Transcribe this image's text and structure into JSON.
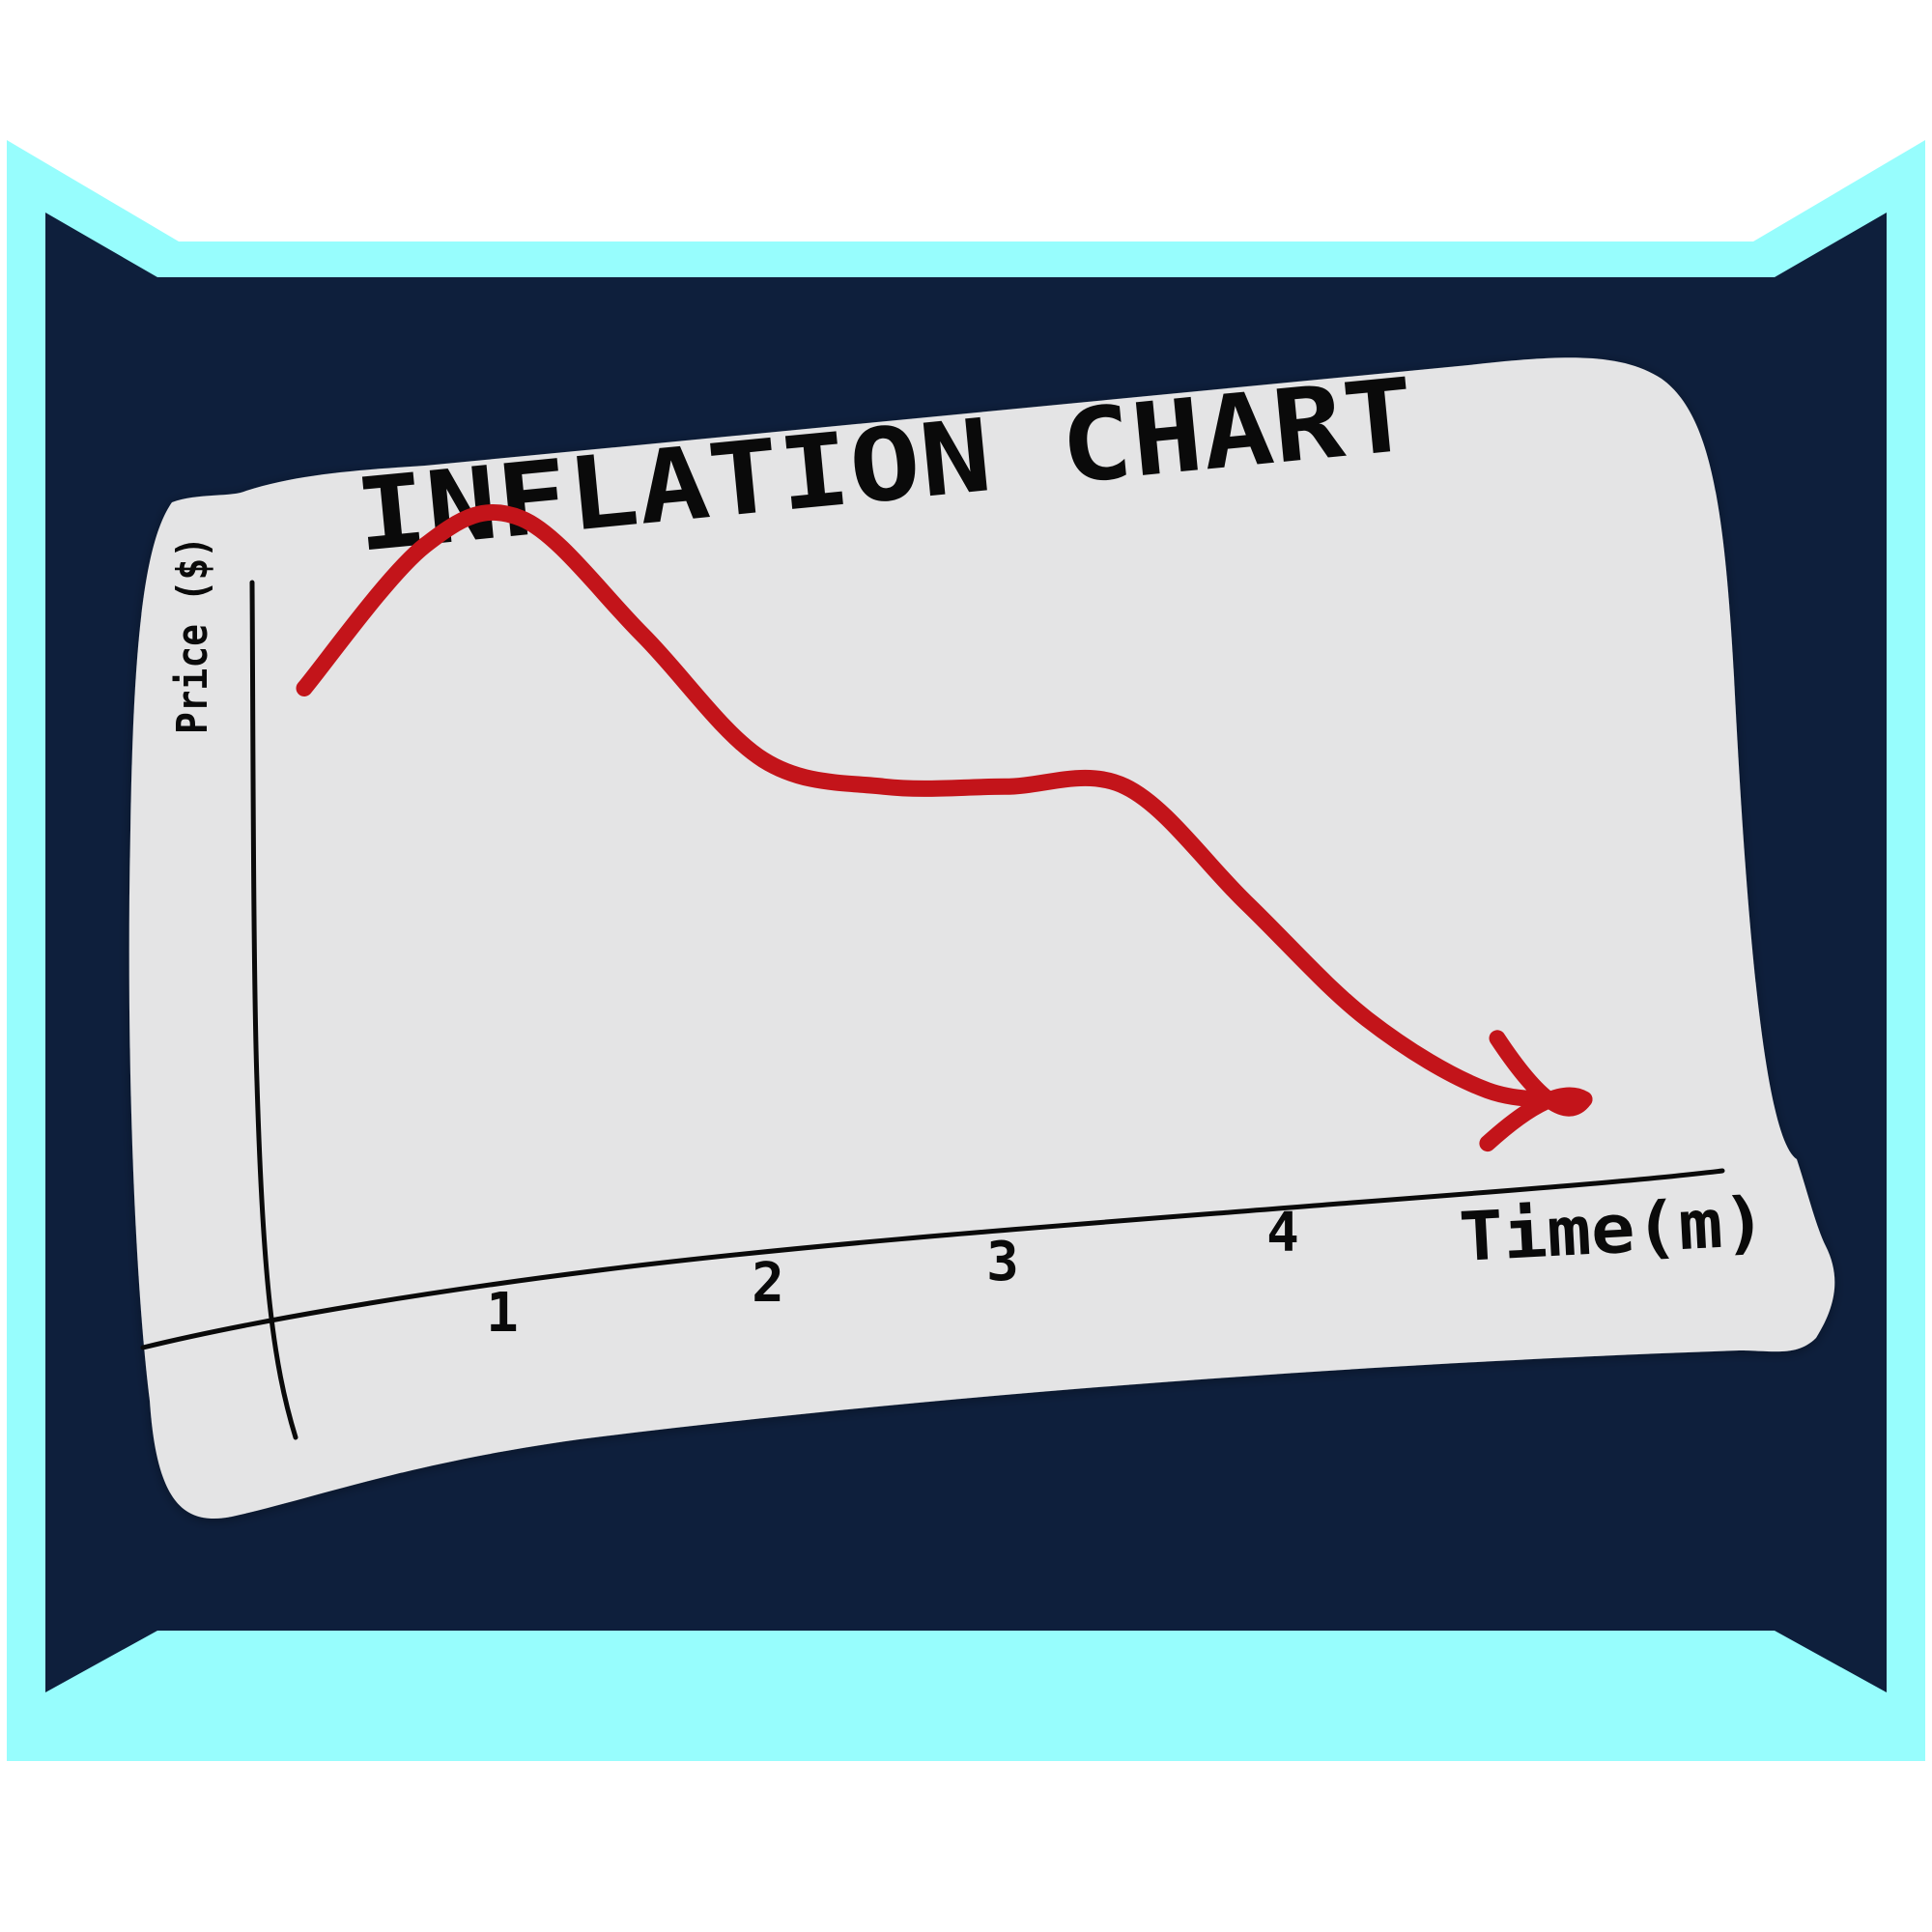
{
  "colors": {
    "background": "#ffffff",
    "frame": "#97fdfd",
    "board": "#0e1f3c",
    "paper": "#e4e4e5",
    "ink": "#0a0a0a",
    "trend": "#c3141a"
  },
  "chart_data": {
    "type": "line",
    "title": "INFLATION CHART",
    "xlabel": "Time(m)",
    "ylabel": "Price ($)",
    "x_ticks": [
      "1",
      "2",
      "3",
      "4"
    ],
    "grid": false,
    "legend": "none",
    "series": [
      {
        "x": [
          0.1,
          0.6,
          1.0,
          1.5,
          2.0,
          2.5,
          3.0,
          3.5,
          4.0,
          4.5,
          5.0,
          5.4
        ],
        "values": [
          7.0,
          8.6,
          8.9,
          7.6,
          6.2,
          5.9,
          5.9,
          5.9,
          4.6,
          3.3,
          2.5,
          2.4
        ]
      }
    ]
  }
}
